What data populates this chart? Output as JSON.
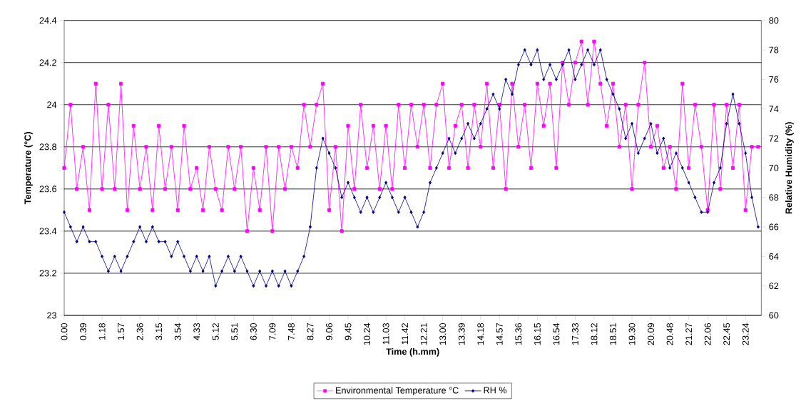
{
  "chart_data": {
    "type": "line",
    "xlabel": "Time (h.mm)",
    "ylabel": "Temperature (°C)",
    "y2label": "Relative Humidity (%)",
    "categories": [
      "0.00",
      null,
      null,
      "0.39",
      null,
      null,
      "1.18",
      null,
      null,
      "1.57",
      null,
      null,
      "2.36",
      null,
      null,
      "3.15",
      null,
      null,
      "3.54",
      null,
      null,
      "4.33",
      null,
      null,
      "5.12",
      null,
      null,
      "5.51",
      null,
      null,
      "6.30",
      null,
      null,
      "7.09",
      null,
      null,
      "7.48",
      null,
      null,
      "8.27",
      null,
      null,
      "9.06",
      null,
      null,
      "9.45",
      null,
      null,
      "10.24",
      null,
      null,
      "11.03",
      null,
      null,
      "11.42",
      null,
      null,
      "12.21",
      null,
      null,
      "13.00",
      null,
      null,
      "13.39",
      null,
      null,
      "14.18",
      null,
      null,
      "14.57",
      null,
      null,
      "15.36",
      null,
      null,
      "16.15",
      null,
      null,
      "16.54",
      null,
      null,
      "17.33",
      null,
      null,
      "18.12",
      null,
      null,
      "18.51",
      null,
      null,
      "19.30",
      null,
      null,
      "20.09",
      null,
      null,
      "20.48",
      null,
      null,
      "21.27",
      null,
      null,
      "22.06",
      null,
      null,
      "22.45",
      null,
      null,
      "23.24",
      null,
      null
    ],
    "series": [
      {
        "name": "Environmental Temperature °C",
        "color": "#ff00ff",
        "marker": "square",
        "values": [
          23.7,
          24.0,
          23.6,
          23.8,
          23.5,
          24.1,
          23.6,
          24.0,
          23.6,
          24.1,
          23.5,
          23.9,
          23.6,
          23.8,
          23.5,
          23.9,
          23.6,
          23.8,
          23.5,
          23.9,
          23.6,
          23.7,
          23.5,
          23.8,
          23.6,
          23.5,
          23.8,
          23.6,
          23.8,
          23.4,
          23.7,
          23.5,
          23.8,
          23.4,
          23.8,
          23.6,
          23.8,
          23.7,
          24.0,
          23.8,
          24.0,
          24.1,
          23.5,
          23.8,
          23.4,
          23.9,
          23.6,
          24.0,
          23.7,
          23.9,
          23.6,
          23.9,
          23.6,
          24.0,
          23.7,
          24.0,
          23.8,
          24.0,
          23.7,
          24.0,
          24.1,
          23.7,
          23.9,
          24.0,
          23.7,
          24.0,
          23.8,
          24.1,
          23.7,
          24.0,
          23.6,
          24.1,
          23.8,
          24.0,
          23.7,
          24.1,
          23.9,
          24.1,
          23.7,
          24.2,
          24.0,
          24.2,
          24.3,
          24.0,
          24.3,
          24.1,
          23.9,
          24.1,
          23.8,
          24.0,
          23.6,
          24.0,
          24.2,
          23.8,
          23.9,
          23.7,
          23.8,
          23.6,
          24.1,
          23.7,
          24.0,
          23.8,
          23.5,
          24.0,
          23.6,
          24.0,
          23.7,
          24.0,
          23.5,
          23.8,
          23.8
        ]
      },
      {
        "name": "RH %",
        "color": "#000080",
        "marker": "diamond",
        "axis": "y2",
        "values": [
          67,
          66,
          65,
          66,
          65,
          65,
          64,
          63,
          64,
          63,
          64,
          65,
          66,
          65,
          66,
          65,
          65,
          64,
          65,
          64,
          63,
          64,
          63,
          64,
          62,
          63,
          64,
          63,
          64,
          63,
          62,
          63,
          62,
          63,
          62,
          63,
          62,
          63,
          64,
          66,
          70,
          72,
          71,
          70,
          68,
          69,
          68,
          67,
          68,
          67,
          68,
          69,
          68,
          67,
          68,
          67,
          66,
          67,
          69,
          70,
          71,
          72,
          71,
          72,
          73,
          72,
          73,
          74,
          75,
          74,
          76,
          75,
          77,
          78,
          77,
          78,
          76,
          77,
          76,
          77,
          78,
          76,
          77,
          78,
          77,
          78,
          76,
          75,
          74,
          72,
          73,
          71,
          72,
          73,
          71,
          72,
          70,
          71,
          70,
          69,
          68,
          67,
          67,
          69,
          70,
          73,
          75,
          73,
          71,
          68,
          66
        ]
      }
    ],
    "ylim": [
      23,
      24.4
    ],
    "yticks": [
      23,
      23.2,
      23.4,
      23.6,
      23.8,
      24,
      24.2,
      24.4
    ],
    "y2lim": [
      60,
      80
    ],
    "y2ticks": [
      60,
      62,
      64,
      66,
      68,
      70,
      72,
      74,
      76,
      78,
      80
    ],
    "grid": "y",
    "legend": "bottom",
    "line_style": "solid"
  }
}
